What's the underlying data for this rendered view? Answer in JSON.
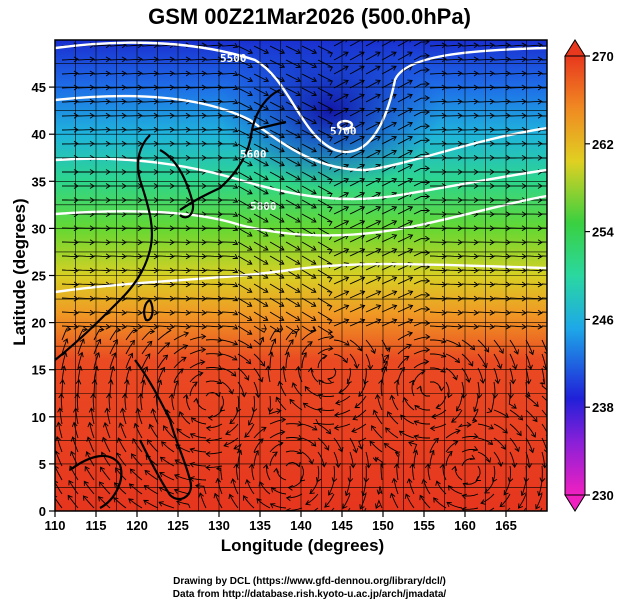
{
  "title": "GSM 00Z21Mar2026 (500.0hPa)",
  "xlabel": "Longitude (degrees)",
  "ylabel": "Latitude  (degrees)",
  "credit_line1": "Drawing by DCL (https://www.gfd-dennou.org/library/dcl/)",
  "credit_line2": "Data from http://database.rish.kyoto-u.ac.jp/arch/jmadata/",
  "chart_data": {
    "type": "heatmap",
    "variable": "temperature (K) with streamlines and height contours",
    "x_ticks": [
      "110",
      "115",
      "120",
      "125",
      "130",
      "135",
      "140",
      "145",
      "150",
      "155",
      "160",
      "165"
    ],
    "y_ticks": [
      "0",
      "5",
      "10",
      "15",
      "20",
      "25",
      "30",
      "35",
      "40",
      "45"
    ],
    "xlim": [
      110,
      170
    ],
    "ylim": [
      0,
      50
    ],
    "colorbar_ticks": [
      "230",
      "238",
      "246",
      "254",
      "262",
      "270"
    ],
    "colorbar_range": [
      230,
      270
    ],
    "contour_labels": [
      "5500",
      "5600",
      "5700",
      "5800"
    ]
  }
}
